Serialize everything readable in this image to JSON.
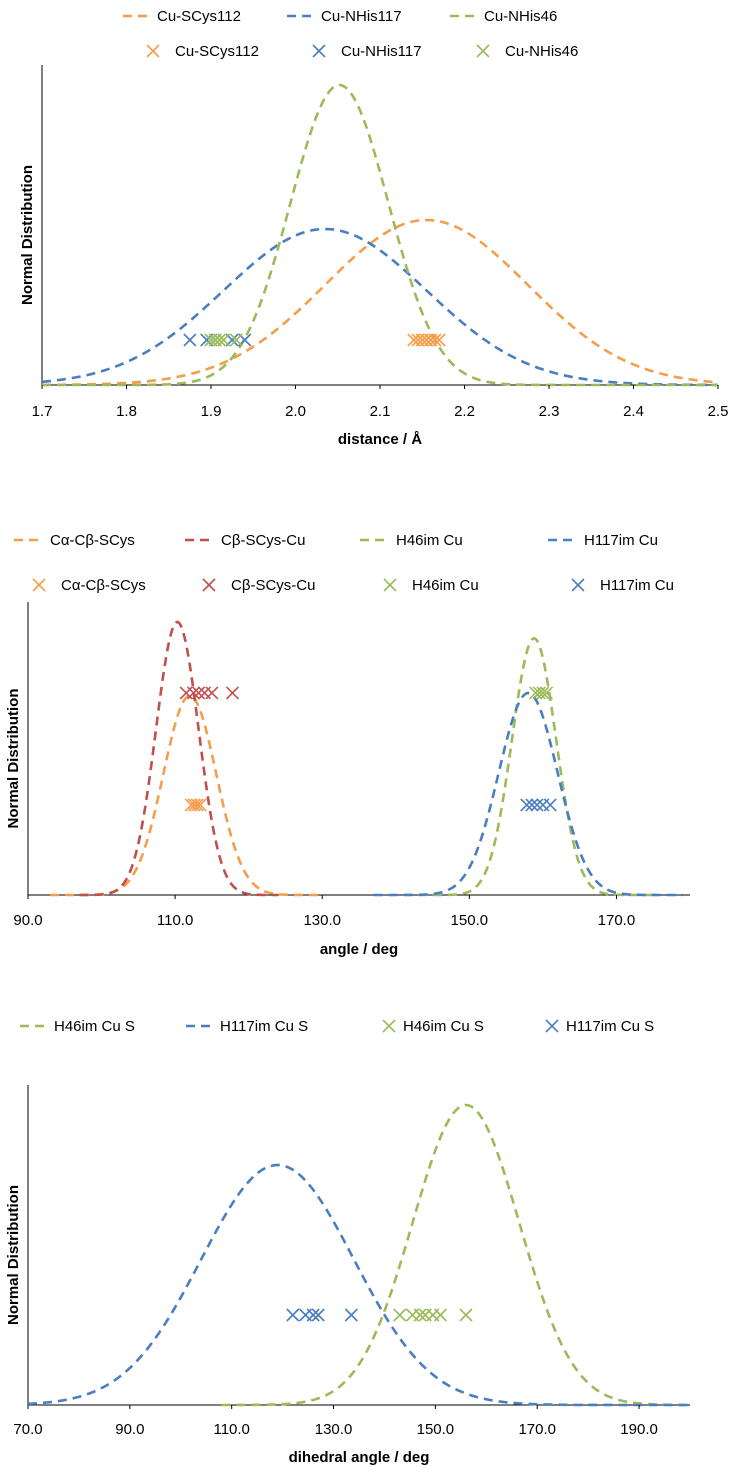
{
  "colors": {
    "orange": "#F59D4A",
    "blue": "#4A7EC0",
    "green": "#9BBB59",
    "red": "#C0504D",
    "axis": "#000000"
  },
  "chart_data": [
    {
      "type": "line",
      "xlabel": "distance / Å",
      "ylabel": "Normal Distribution",
      "xlim": [
        1.7,
        2.5
      ],
      "xticks": [
        "1.7",
        "1.8",
        "1.9",
        "2.0",
        "2.1",
        "2.2",
        "2.3",
        "2.4",
        "2.5"
      ],
      "legend_placement": "top",
      "legend_rows": [
        [
          {
            "label": "Cu-SCys112",
            "color": "orange",
            "marker": "dash"
          },
          {
            "label": "Cu-NHis117",
            "color": "blue",
            "marker": "dash"
          },
          {
            "label": "Cu-NHis46",
            "color": "green",
            "marker": "dash"
          }
        ],
        [
          {
            "label": "Cu-SCys112",
            "color": "orange",
            "marker": "x"
          },
          {
            "label": "Cu-NHis117",
            "color": "blue",
            "marker": "x"
          },
          {
            "label": "Cu-NHis46",
            "color": "green",
            "marker": "x"
          }
        ]
      ],
      "series": [
        {
          "name": "Cu-SCys112",
          "kind": "curve",
          "color": "orange",
          "mean": 2.155,
          "sd": 0.12,
          "peak": 0.55,
          "x_range": [
            1.7,
            2.5
          ]
        },
        {
          "name": "Cu-NHis117",
          "kind": "curve",
          "color": "blue",
          "mean": 2.035,
          "sd": 0.12,
          "peak": 0.52,
          "x_range": [
            1.7,
            2.5
          ]
        },
        {
          "name": "Cu-NHis46",
          "kind": "curve",
          "color": "green",
          "mean": 2.052,
          "sd": 0.058,
          "peak": 1.0,
          "x_range": [
            1.7,
            2.5
          ]
        },
        {
          "name": "Cu-SCys112",
          "kind": "points",
          "color": "orange",
          "level": 0.15,
          "x": [
            2.14,
            2.145,
            2.15,
            2.155,
            2.16,
            2.165,
            2.17
          ]
        },
        {
          "name": "Cu-NHis117",
          "kind": "points",
          "color": "blue",
          "level": 0.15,
          "x": [
            1.875,
            1.895,
            1.905,
            1.925,
            1.94
          ]
        },
        {
          "name": "Cu-NHis46",
          "kind": "points",
          "color": "green",
          "level": 0.15,
          "x": [
            1.9,
            1.905,
            1.91,
            1.915,
            1.93
          ]
        }
      ]
    },
    {
      "type": "line",
      "xlabel": "angle / deg",
      "ylabel": "Normal Distribution",
      "xlim": [
        90.0,
        180.0
      ],
      "xticks": [
        "90.0",
        "110.0",
        "130.0",
        "150.0",
        "170.0"
      ],
      "legend_placement": "top",
      "legend_rows": [
        [
          {
            "label": "Cα-Cβ-SCys",
            "color": "orange",
            "marker": "dash"
          },
          {
            "label": "Cβ-SCys-Cu",
            "color": "red",
            "marker": "dash"
          },
          {
            "label": "H46im Cu",
            "color": "green",
            "marker": "dash"
          },
          {
            "label": "H117im Cu",
            "color": "blue",
            "marker": "dash"
          }
        ],
        [
          {
            "label": "Cα-Cβ-SCys",
            "color": "orange",
            "marker": "x"
          },
          {
            "label": "Cβ-SCys-Cu",
            "color": "red",
            "marker": "x"
          },
          {
            "label": "H46im Cu",
            "color": "green",
            "marker": "x"
          },
          {
            "label": "H117im Cu",
            "color": "blue",
            "marker": "x"
          }
        ]
      ],
      "series": [
        {
          "name": "Cα-Cβ-SCys",
          "kind": "curve",
          "color": "orange",
          "mean": 112.0,
          "sd": 3.6,
          "peak": 0.73,
          "x_range": [
            93.0,
            130.0
          ]
        },
        {
          "name": "Cβ-SCys-Cu",
          "kind": "curve",
          "color": "red",
          "mean": 110.3,
          "sd": 2.9,
          "peak": 1.0,
          "x_range": [
            97.0,
            124.0
          ]
        },
        {
          "name": "H46im Cu",
          "kind": "curve",
          "color": "green",
          "mean": 158.8,
          "sd": 3.0,
          "peak": 0.94,
          "x_range": [
            143.0,
            175.0
          ]
        },
        {
          "name": "H117im Cu",
          "kind": "curve",
          "color": "blue",
          "mean": 158.0,
          "sd": 4.0,
          "peak": 0.74,
          "x_range": [
            137.0,
            179.0
          ]
        },
        {
          "name": "Cβ-SCys-Cu",
          "kind": "points",
          "color": "red",
          "level": 0.74,
          "x": [
            111.5,
            112.5,
            113.2,
            114.0,
            115.0,
            117.8
          ]
        },
        {
          "name": "Cα-Cβ-SCys",
          "kind": "points",
          "color": "orange",
          "level": 0.33,
          "x": [
            112.2,
            112.6,
            113.0,
            113.4
          ]
        },
        {
          "name": "H46im Cu",
          "kind": "points",
          "color": "green",
          "level": 0.74,
          "x": [
            159.0,
            159.5,
            160.0,
            160.5
          ]
        },
        {
          "name": "H117im Cu",
          "kind": "points",
          "color": "blue",
          "level": 0.33,
          "x": [
            157.8,
            158.5,
            159.2,
            160.0,
            161.0
          ]
        }
      ]
    },
    {
      "type": "line",
      "xlabel": "dihedral angle / deg",
      "ylabel": "Normal Distribution",
      "xlim": [
        70.0,
        200.0
      ],
      "xticks": [
        "70.0",
        "90.0",
        "110.0",
        "130.0",
        "150.0",
        "170.0",
        "190.0"
      ],
      "legend_placement": "top",
      "legend_rows": [
        [
          {
            "label": "H46im Cu S",
            "color": "green",
            "marker": "dash"
          },
          {
            "label": "H117im Cu S",
            "color": "blue",
            "marker": "dash"
          },
          {
            "label": "H46im Cu S",
            "color": "green",
            "marker": "x"
          },
          {
            "label": "H117im Cu S",
            "color": "blue",
            "marker": "x"
          }
        ]
      ],
      "series": [
        {
          "name": "H46im Cu S",
          "kind": "curve",
          "color": "green",
          "mean": 156.0,
          "sd": 10.5,
          "peak": 1.0,
          "x_range": [
            108.0,
            200.0
          ]
        },
        {
          "name": "H117im Cu S",
          "kind": "curve",
          "color": "blue",
          "mean": 119.0,
          "sd": 15.0,
          "peak": 0.8,
          "x_range": [
            70.0,
            200.0
          ]
        },
        {
          "name": "H117im Cu S",
          "kind": "points",
          "color": "blue",
          "level": 0.3,
          "x": [
            122.0,
            124.5,
            126.0,
            127.0,
            133.5
          ]
        },
        {
          "name": "H46im Cu S",
          "kind": "points",
          "color": "green",
          "level": 0.3,
          "x": [
            143.0,
            145.5,
            147.0,
            148.0,
            149.5,
            151.0,
            156.0
          ]
        }
      ]
    }
  ]
}
